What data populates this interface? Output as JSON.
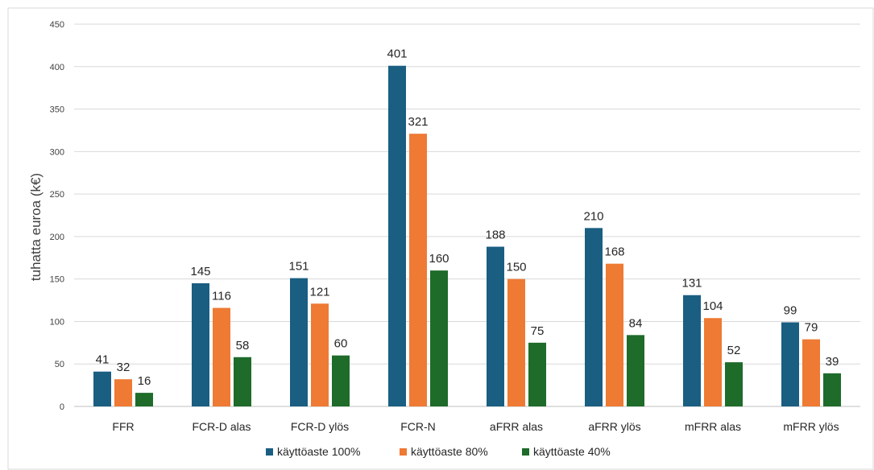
{
  "chart_data": {
    "type": "bar",
    "title": "",
    "xlabel": "",
    "ylabel": "tuhatta euroa (k€)",
    "ylim": [
      0,
      450
    ],
    "yticks": [
      0,
      50,
      100,
      150,
      200,
      250,
      300,
      350,
      400,
      450
    ],
    "grid": true,
    "legend_position": "bottom",
    "categories": [
      "FFR",
      "FCR-D alas",
      "FCR-D ylös",
      "FCR-N",
      "aFRR alas",
      "aFRR ylös",
      "mFRR alas",
      "mFRR ylös"
    ],
    "series": [
      {
        "name": "käyttöaste 100%",
        "color": "#1a5e82",
        "values": [
          41,
          145,
          151,
          401,
          188,
          210,
          131,
          99
        ]
      },
      {
        "name": "käyttöaste 80%",
        "color": "#ee7a34",
        "values": [
          32,
          116,
          121,
          321,
          150,
          168,
          104,
          79
        ]
      },
      {
        "name": "käyttöaste 40%",
        "color": "#1e6b2a",
        "values": [
          16,
          58,
          60,
          160,
          75,
          84,
          52,
          39
        ]
      }
    ]
  }
}
